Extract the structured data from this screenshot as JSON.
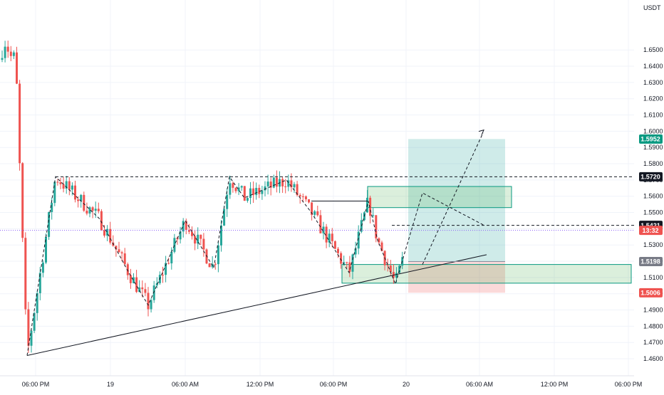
{
  "currency": "USDT",
  "colors": {
    "up": "#26a69a",
    "down": "#ef5350",
    "grid": "#f0f3fa",
    "axis_text": "#131722",
    "long_zone": "rgba(38,166,154,0.22)",
    "short_zone": "rgba(239,83,80,0.22)",
    "box_fill": "rgba(76,175,80,0.20)",
    "box_stroke": "#089981",
    "price_line": "#8a5cf6"
  },
  "chart_data": {
    "type": "candlestick",
    "title": "",
    "y_ticks": [
      "1.6500",
      "1.6400",
      "1.6300",
      "1.6200",
      "1.6100",
      "1.6000",
      "1.5900",
      "1.5800",
      "1.5700",
      "1.5600",
      "1.5500",
      "1.5400",
      "1.5300",
      "1.5200",
      "1.5100",
      "1.5000",
      "1.4900",
      "1.4800",
      "1.4700",
      "1.4600"
    ],
    "ylim": [
      1.4552,
      1.6663
    ],
    "x_ticks": [
      "06:00 PM",
      "19",
      "06:00 AM",
      "12:00 PM",
      "06:00 PM",
      "20",
      "06:00 AM",
      "12:00 PM",
      "06:00 PM"
    ],
    "swing_path": [
      1.462,
      1.572,
      1.546,
      1.512,
      1.493,
      1.545,
      1.516,
      1.572,
      1.559,
      1.57,
      1.55,
      1.513,
      1.557,
      1.533,
      1.506,
      1.562,
      1.542,
      1.518
    ],
    "swing_highs": [
      1.662,
      1.572,
      1.57,
      1.557,
      1.562
    ],
    "swing_lows": [
      1.462,
      1.493,
      1.513,
      1.506
    ],
    "candles": [],
    "price_labels": [
      {
        "value": 1.5952,
        "text": "1.5952",
        "kind": "target"
      },
      {
        "value": 1.572,
        "text": "1.5720",
        "kind": "level"
      },
      {
        "value": 1.5421,
        "text": "1.5421",
        "kind": "level"
      },
      {
        "value": 1.539,
        "text": "13:32",
        "kind": "current"
      },
      {
        "value": 1.5198,
        "text": "1.5198",
        "kind": "entry"
      },
      {
        "value": 1.5006,
        "text": "1.5006",
        "kind": "stop"
      }
    ],
    "levels": [
      {
        "value": 1.572,
        "style": "dashed"
      },
      {
        "value": 1.5421,
        "style": "dashed"
      }
    ],
    "position": {
      "entry": 1.5198,
      "target": 1.5952,
      "stop": 1.5006
    },
    "zones": [
      {
        "top": 1.566,
        "bottom": 1.553
      },
      {
        "top": 1.518,
        "bottom": 1.5065
      }
    ],
    "trendline": [
      1.462,
      1.524
    ],
    "projection": [
      1.518,
      1.599
    ],
    "resistance": 1.557
  }
}
